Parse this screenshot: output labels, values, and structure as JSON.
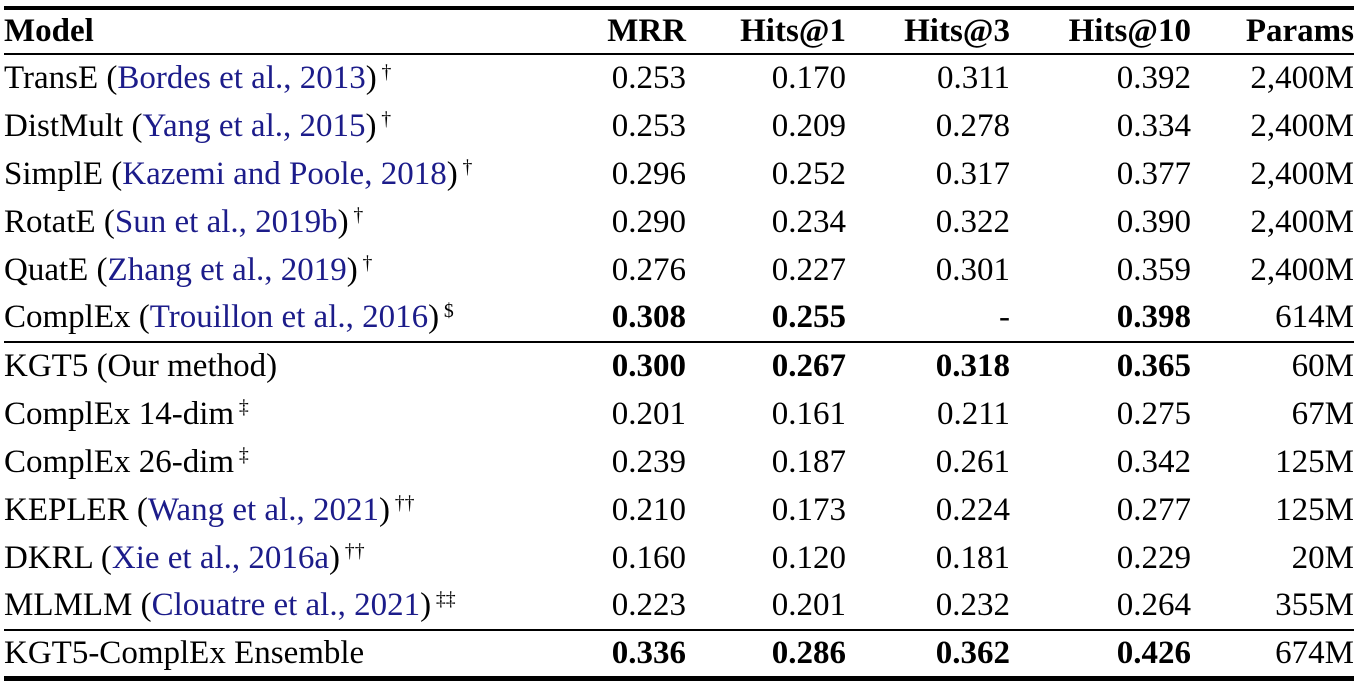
{
  "page": {
    "background": "#ffffff",
    "text_color": "#000000"
  },
  "table": {
    "citation_color": "#1c1c8a",
    "rule_color": "#000000",
    "columns": [
      "Model",
      "MRR",
      "Hits@1",
      "Hits@3",
      "Hits@10",
      "Params"
    ],
    "sections": [
      {
        "rows": [
          {
            "model_pre": "TransE (",
            "cite": "Bordes et al., 2013",
            "model_post": ")",
            "sup": "†",
            "metrics": [
              "0.253",
              "0.170",
              "0.311",
              "0.392"
            ],
            "bold": [
              false,
              false,
              false,
              false
            ],
            "params": "2,400M"
          },
          {
            "model_pre": "DistMult (",
            "cite": "Yang et al., 2015",
            "model_post": ")",
            "sup": "†",
            "metrics": [
              "0.253",
              "0.209",
              "0.278",
              "0.334"
            ],
            "bold": [
              false,
              false,
              false,
              false
            ],
            "params": "2,400M"
          },
          {
            "model_pre": "SimplE (",
            "cite": "Kazemi and Poole, 2018",
            "model_post": ")",
            "sup": "†",
            "metrics": [
              "0.296",
              "0.252",
              "0.317",
              "0.377"
            ],
            "bold": [
              false,
              false,
              false,
              false
            ],
            "params": "2,400M"
          },
          {
            "model_pre": "RotatE (",
            "cite": "Sun et al., 2019b",
            "model_post": ")",
            "sup": "†",
            "metrics": [
              "0.290",
              "0.234",
              "0.322",
              "0.390"
            ],
            "bold": [
              false,
              false,
              false,
              false
            ],
            "params": "2,400M"
          },
          {
            "model_pre": "QuatE (",
            "cite": "Zhang et al., 2019",
            "model_post": ")",
            "sup": "†",
            "metrics": [
              "0.276",
              "0.227",
              "0.301",
              "0.359"
            ],
            "bold": [
              false,
              false,
              false,
              false
            ],
            "params": "2,400M"
          },
          {
            "model_pre": "ComplEx (",
            "cite": "Trouillon et al., 2016",
            "model_post": ")",
            "sup": "$",
            "metrics": [
              "0.308",
              "0.255",
              "-",
              "0.398"
            ],
            "bold": [
              true,
              true,
              false,
              true
            ],
            "params": "614M"
          }
        ]
      },
      {
        "rows": [
          {
            "model_pre": "KGT5 (Our method)",
            "cite": "",
            "model_post": "",
            "sup": "",
            "metrics": [
              "0.300",
              "0.267",
              "0.318",
              "0.365"
            ],
            "bold": [
              true,
              true,
              true,
              true
            ],
            "params": "60M"
          },
          {
            "model_pre": "ComplEx 14-dim",
            "cite": "",
            "model_post": "",
            "sup": "‡",
            "metrics": [
              "0.201",
              "0.161",
              "0.211",
              "0.275"
            ],
            "bold": [
              false,
              false,
              false,
              false
            ],
            "params": "67M"
          },
          {
            "model_pre": "ComplEx 26-dim",
            "cite": "",
            "model_post": "",
            "sup": "‡",
            "metrics": [
              "0.239",
              "0.187",
              "0.261",
              "0.342"
            ],
            "bold": [
              false,
              false,
              false,
              false
            ],
            "params": "125M"
          },
          {
            "model_pre": "KEPLER (",
            "cite": "Wang et al., 2021",
            "model_post": ")",
            "sup": "††",
            "metrics": [
              "0.210",
              "0.173",
              "0.224",
              "0.277"
            ],
            "bold": [
              false,
              false,
              false,
              false
            ],
            "params": "125M"
          },
          {
            "model_pre": "DKRL (",
            "cite": "Xie et al., 2016a",
            "model_post": ")",
            "sup": "††",
            "metrics": [
              "0.160",
              "0.120",
              "0.181",
              "0.229"
            ],
            "bold": [
              false,
              false,
              false,
              false
            ],
            "params": "20M"
          },
          {
            "model_pre": "MLMLM (",
            "cite": "Clouatre et al., 2021",
            "model_post": ")",
            "sup": "‡‡",
            "metrics": [
              "0.223",
              "0.201",
              "0.232",
              "0.264"
            ],
            "bold": [
              false,
              false,
              false,
              false
            ],
            "params": "355M"
          }
        ]
      },
      {
        "rows": [
          {
            "model_pre": "KGT5-ComplEx Ensemble",
            "cite": "",
            "model_post": "",
            "sup": "",
            "metrics": [
              "0.336",
              "0.286",
              "0.362",
              "0.426"
            ],
            "bold": [
              true,
              true,
              true,
              true
            ],
            "params": "674M"
          }
        ]
      }
    ]
  }
}
